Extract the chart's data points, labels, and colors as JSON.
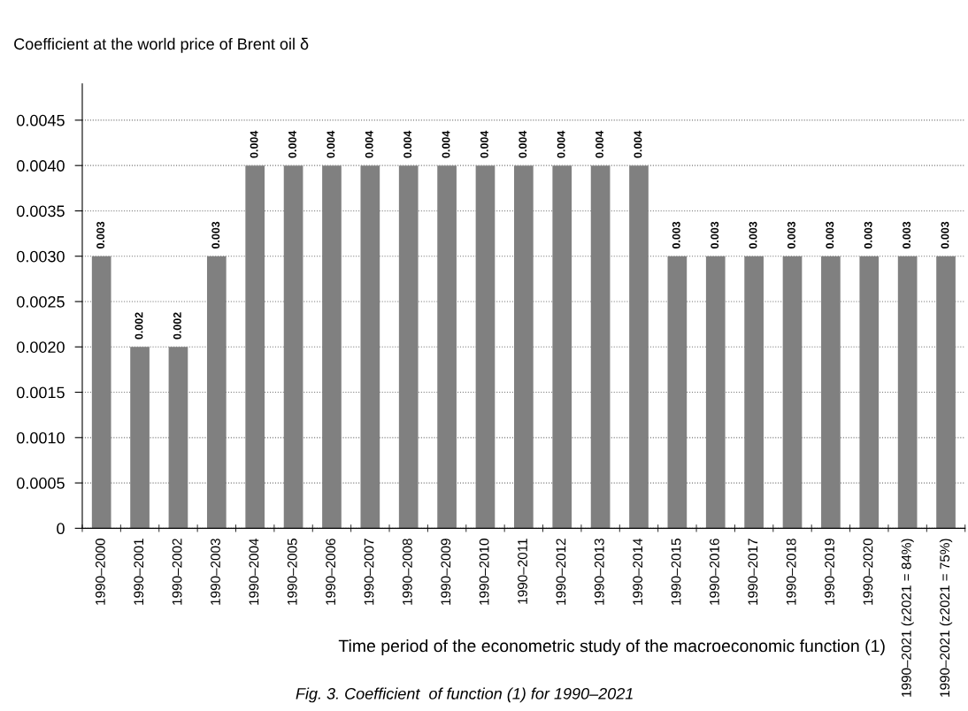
{
  "chart_data": {
    "type": "bar",
    "ylabel": "Coefficient at the world price of Brent oil δ",
    "xlabel": "Time period of the econometric study of the macroeconomic function (1)",
    "annotations": [
      "Fig. 3. Coefficient  of function (1) for 1990–2021"
    ],
    "categories": [
      "1990–2000",
      "1990–2001",
      "1990–2002",
      "1990–2003",
      "1990–2004",
      "1990–2005",
      "1990–2006",
      "1990–2007",
      "1990–2008",
      "1990–2009",
      "1990–2010",
      "1990–2011",
      "1990–2012",
      "1990–2013",
      "1990–2014",
      "1990–2015",
      "1990–2016",
      "1990–2017",
      "1990–2018",
      "1990–2019",
      "1990–2020",
      "1990–2021 (z2021 = 84%)",
      "1990–2021 (z2021 = 75%)"
    ],
    "values": [
      0.003,
      0.002,
      0.002,
      0.003,
      0.004,
      0.004,
      0.004,
      0.004,
      0.004,
      0.004,
      0.004,
      0.004,
      0.004,
      0.004,
      0.004,
      0.003,
      0.003,
      0.003,
      0.003,
      0.003,
      0.003,
      0.003,
      0.003
    ],
    "color": "#808080",
    "ylim": [
      0,
      0.0049
    ],
    "yticks": [
      0,
      {
        "value": 0.0005,
        "label": "0.0005"
      },
      {
        "value": 0.001,
        "label": "0.0010"
      },
      {
        "value": 0.0015,
        "label": "0.0015"
      },
      {
        "value": 0.002,
        "label": "0.0020"
      },
      {
        "value": 0.0025,
        "label": "0.0025"
      },
      {
        "value": 0.003,
        "label": "0.0030"
      },
      {
        "value": 0.0035,
        "label": "0.0035"
      },
      {
        "value": 0.004,
        "label": "0.0040"
      },
      {
        "value": 0.0045,
        "label": "0.0045"
      }
    ],
    "grid": "y",
    "data_labels": true,
    "legend": false
  }
}
